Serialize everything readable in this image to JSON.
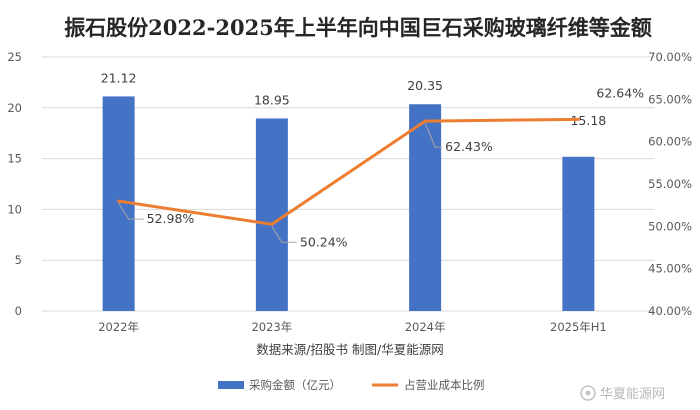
{
  "chart_data": {
    "type": "bar",
    "title": "振石股份2022-2025年上半年向中国巨石采购玻璃纤维等金额",
    "categories": [
      "2022年",
      "2023年",
      "2024年",
      "2025年H1"
    ],
    "series": [
      {
        "name": "采购金额（亿元）",
        "type": "bar",
        "axis": "left",
        "color": "#4472c4",
        "values": [
          21.12,
          18.95,
          20.35,
          15.18
        ],
        "labels": [
          "21.12",
          "18.95",
          "20.35",
          "15.18"
        ]
      },
      {
        "name": "占营业成本比例",
        "type": "line",
        "axis": "right",
        "color": "#ed7d31",
        "values": [
          52.98,
          50.24,
          62.43,
          62.64
        ],
        "labels": [
          "52.98%",
          "50.24%",
          "62.43%",
          "62.64%"
        ]
      }
    ],
    "y_left": {
      "min": 0,
      "max": 25,
      "ticks": [
        "0",
        "5",
        "10",
        "15",
        "20",
        "25"
      ]
    },
    "y_right": {
      "min": 40,
      "max": 70,
      "ticks": [
        "40.00%",
        "45.00%",
        "50.00%",
        "55.00%",
        "60.00%",
        "65.00%",
        "70.00%"
      ]
    },
    "grid": true,
    "legend_position": "bottom",
    "source_note": "数据来源/招股书 制图/华夏能源网"
  },
  "watermark": "华夏能源网",
  "colors": {
    "bar": "#4472c4",
    "line": "#ed7d31",
    "grid": "#d9d9d9"
  }
}
